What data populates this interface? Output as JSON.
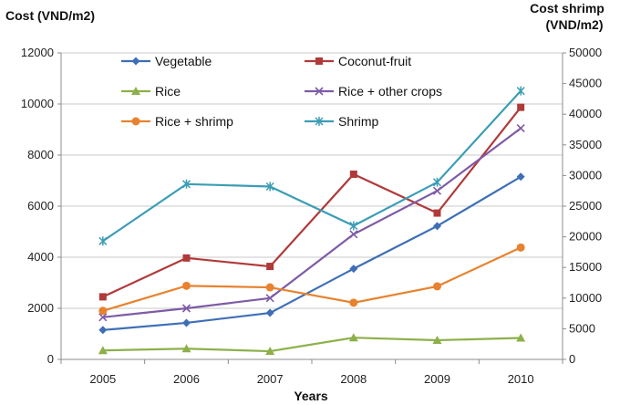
{
  "chart_data": {
    "type": "line",
    "xlabel": "Years",
    "ylabel": "Cost (VND/m2)",
    "y2label_line1": "Cost shrimp",
    "y2label_line2": "(VND/m2)",
    "categories": [
      "2005",
      "2006",
      "2007",
      "2008",
      "2009",
      "2010"
    ],
    "ylim": [
      0,
      12000
    ],
    "yticks": [
      "0",
      "2000",
      "4000",
      "6000",
      "8000",
      "10000",
      "12000"
    ],
    "y2lim": [
      0,
      50000
    ],
    "y2ticks": [
      "0",
      "5000",
      "10000",
      "15000",
      "20000",
      "25000",
      "30000",
      "35000",
      "40000",
      "45000",
      "50000"
    ],
    "grid": true,
    "legend_position": "top-inside",
    "series": [
      {
        "name": "Vegetable",
        "color": "#3E6FB6",
        "marker": "diamond",
        "axis": "left",
        "values": [
          1150,
          1430,
          1820,
          3550,
          5220,
          7150
        ]
      },
      {
        "name": "Coconut-fruit",
        "color": "#B03A3A",
        "marker": "square",
        "axis": "left",
        "values": [
          2450,
          3970,
          3640,
          7250,
          5730,
          9870
        ]
      },
      {
        "name": "Rice",
        "color": "#8DB04A",
        "marker": "triangle",
        "axis": "left",
        "values": [
          350,
          420,
          320,
          850,
          750,
          840
        ]
      },
      {
        "name": "Rice + other crops",
        "color": "#7E5BA6",
        "marker": "x",
        "axis": "left",
        "values": [
          1650,
          2000,
          2400,
          4900,
          6600,
          9050
        ]
      },
      {
        "name": "Rice + shrimp",
        "color": "#E8822E",
        "marker": "circle",
        "axis": "left",
        "values": [
          1900,
          2880,
          2820,
          2220,
          2860,
          4380
        ]
      },
      {
        "name": "Shrimp",
        "color": "#3C9DB5",
        "marker": "star",
        "axis": "right",
        "values": [
          19300,
          28600,
          28200,
          21800,
          28900,
          43800
        ]
      }
    ]
  }
}
